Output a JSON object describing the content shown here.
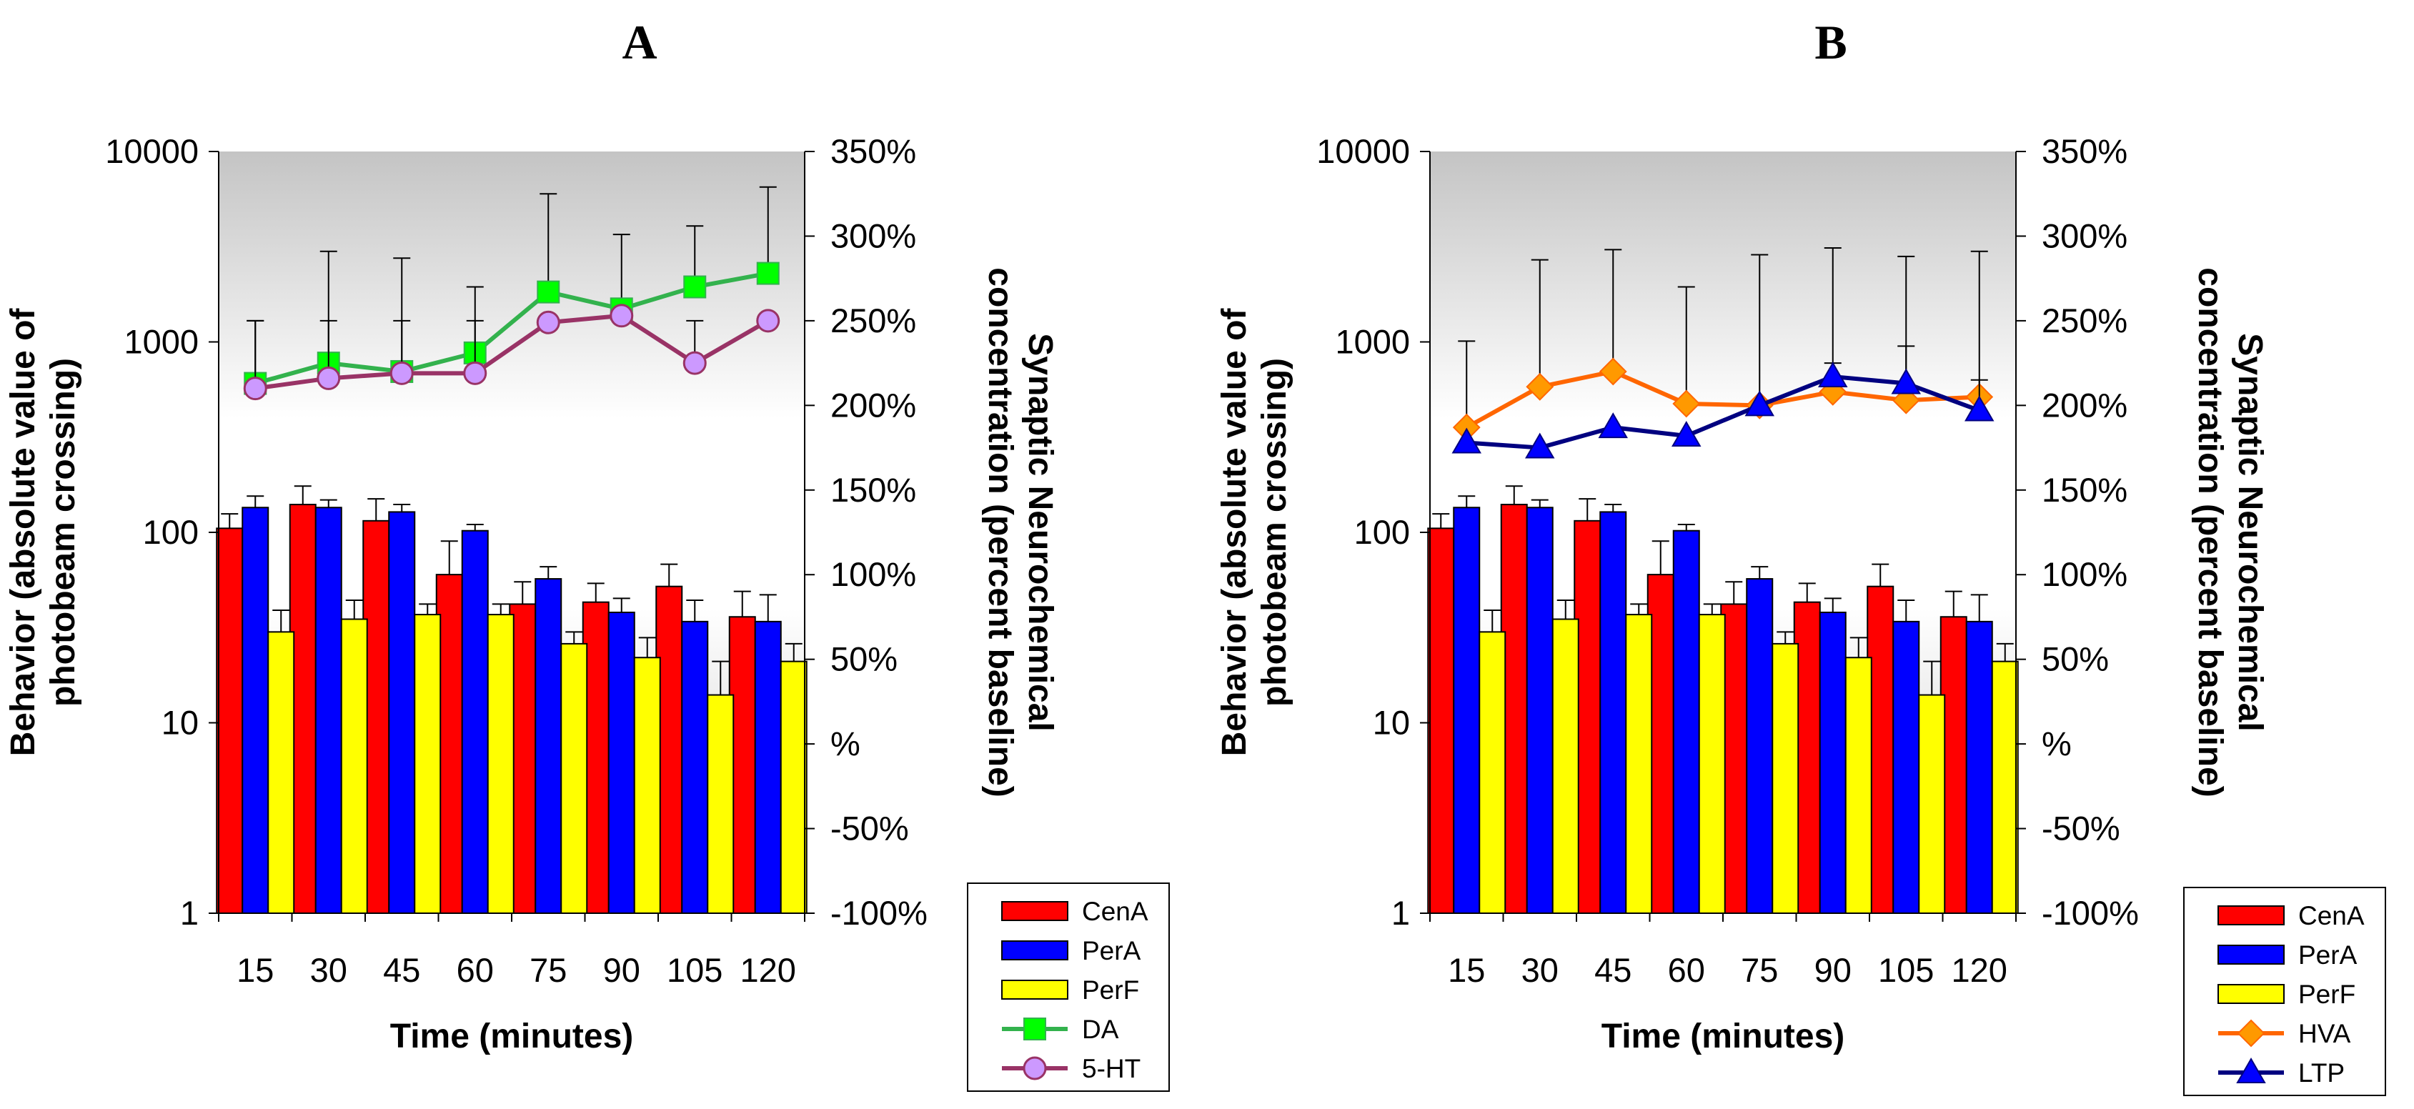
{
  "chart_data": [
    {
      "panel": "A",
      "type": "bar+line",
      "title": "A",
      "xlabel": "Time (minutes)",
      "ylabel_left": [
        "Behavior (absolute value of",
        "photobeam crossing)"
      ],
      "ylabel_right": [
        "Synaptic Neurochemical",
        "concentration (percent baseline)"
      ],
      "categories": [
        "15",
        "30",
        "45",
        "60",
        "75",
        "90",
        "105",
        "120"
      ],
      "left_axis": {
        "scale": "log",
        "min": 1,
        "max": 10000,
        "ticks": [
          "1",
          "10",
          "100",
          "1000",
          "10000"
        ]
      },
      "right_axis": {
        "min": -100,
        "max": 350,
        "ticks": [
          "-100%",
          "-50%",
          "%",
          "50%",
          "100%",
          "150%",
          "200%",
          "250%",
          "300%",
          "350%"
        ]
      },
      "bar_series": [
        {
          "name": "CenA",
          "color": "#ff0000",
          "values": [
            105,
            140,
            115,
            60,
            42,
            43,
            52,
            36
          ],
          "errors": [
            125,
            175,
            150,
            90,
            55,
            54,
            68,
            49
          ]
        },
        {
          "name": "PerA",
          "color": "#0000ff",
          "values": [
            135,
            135,
            128,
            102,
            57,
            38,
            34,
            34
          ],
          "errors": [
            155,
            148,
            140,
            110,
            66,
            45,
            44,
            47
          ]
        },
        {
          "name": "PerF",
          "color": "#ffff00",
          "values": [
            30,
            35,
            37,
            37,
            26,
            22,
            14,
            21
          ],
          "errors": [
            39,
            44,
            42,
            42,
            30,
            28,
            21,
            26
          ]
        }
      ],
      "line_series": [
        {
          "name": "DA",
          "color": "#33b24d",
          "fill": "#00ff00",
          "marker": "square",
          "values": [
            213,
            225,
            220,
            231,
            267,
            257,
            270,
            278
          ],
          "errors": [
            250,
            291,
            287,
            270,
            325,
            301,
            306,
            329
          ]
        },
        {
          "name": "5-HT",
          "color": "#993366",
          "fill": "#cc99ff",
          "marker": "circle",
          "values": [
            210,
            216,
            219,
            219,
            249,
            253,
            225,
            250
          ],
          "errors": [
            250,
            250,
            250,
            250,
            250,
            250,
            250,
            250
          ]
        }
      ],
      "legend": [
        "CenA",
        "PerA",
        "PerF",
        "DA",
        "5-HT"
      ]
    },
    {
      "panel": "B",
      "type": "bar+line",
      "title": "B",
      "xlabel": "Time (minutes)",
      "ylabel_left": [
        "Behavior (absolute value of",
        "photobeam crossing)"
      ],
      "ylabel_right": [
        "Synaptic Neurochemical",
        "concentration (percent baseline)"
      ],
      "categories": [
        "15",
        "30",
        "45",
        "60",
        "75",
        "90",
        "105",
        "120"
      ],
      "left_axis": {
        "scale": "log",
        "min": 1,
        "max": 10000,
        "ticks": [
          "1",
          "10",
          "100",
          "1000",
          "10000"
        ]
      },
      "right_axis": {
        "min": -100,
        "max": 350,
        "ticks": [
          "-100%",
          "-50%",
          "%",
          "50%",
          "100%",
          "150%",
          "200%",
          "250%",
          "300%",
          "350%"
        ]
      },
      "bar_series": [
        {
          "name": "CenA",
          "color": "#ff0000",
          "values": [
            105,
            140,
            115,
            60,
            42,
            43,
            52,
            36
          ],
          "errors": [
            125,
            175,
            150,
            90,
            55,
            54,
            68,
            49
          ]
        },
        {
          "name": "PerA",
          "color": "#0000ff",
          "values": [
            135,
            135,
            128,
            102,
            57,
            38,
            34,
            34
          ],
          "errors": [
            155,
            148,
            140,
            110,
            66,
            45,
            44,
            47
          ]
        },
        {
          "name": "PerF",
          "color": "#ffff00",
          "values": [
            30,
            35,
            37,
            37,
            26,
            22,
            14,
            21
          ],
          "errors": [
            39,
            44,
            42,
            42,
            30,
            28,
            21,
            26
          ]
        }
      ],
      "line_series": [
        {
          "name": "HVA",
          "color": "#ff6600",
          "fill": "#ff9900",
          "marker": "diamond",
          "values": [
            187,
            211,
            220,
            201,
            200,
            208,
            203,
            205
          ],
          "errors": [
            238,
            286,
            292,
            270,
            289,
            293,
            288,
            291
          ]
        },
        {
          "name": "LTP",
          "color": "#000080",
          "fill": "#0000ff",
          "marker": "triangle",
          "values": [
            178,
            175,
            187,
            182,
            200,
            217,
            213,
            197
          ],
          "errors": [
            178,
            175,
            187,
            182,
            200,
            225,
            235,
            215
          ]
        }
      ],
      "legend": [
        "CenA",
        "PerA",
        "PerF",
        "HVA",
        "LTP"
      ]
    }
  ]
}
